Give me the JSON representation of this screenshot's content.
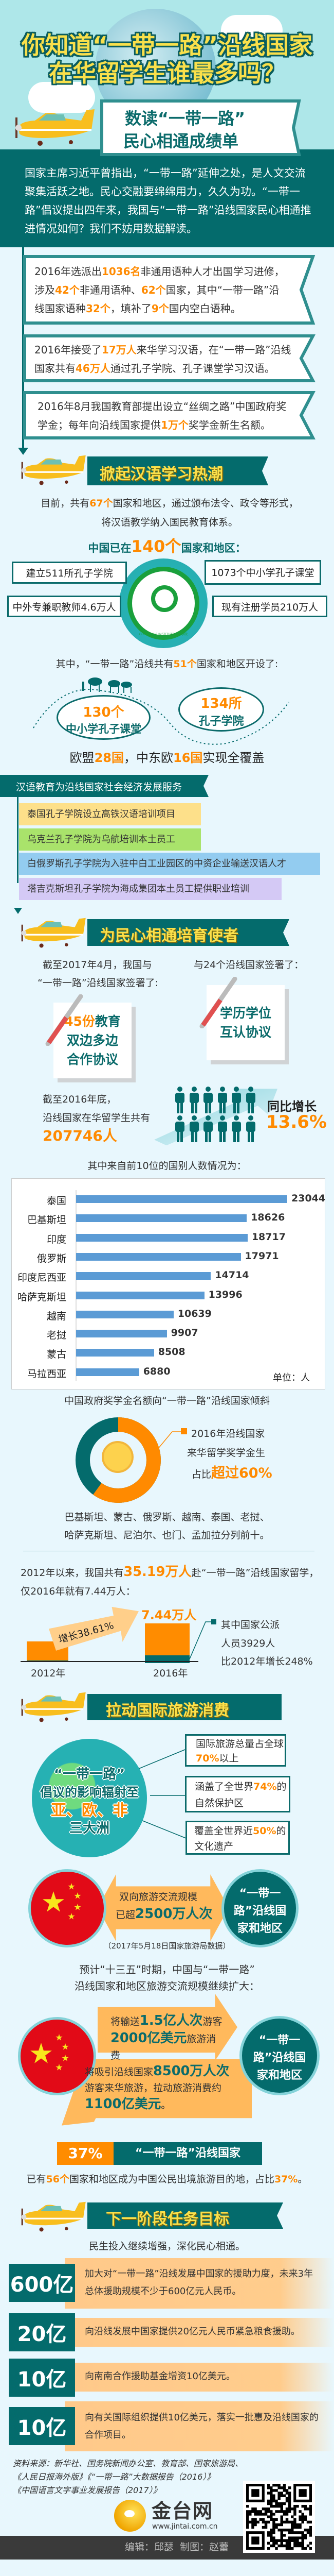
{
  "colors": {
    "teal": "#046b6c",
    "orange": "#ff8a00",
    "yellow": "#fbe04b",
    "bar": "#5b9bd5",
    "sky": "#aee7e9",
    "background": "#e8f7fd"
  },
  "header": {
    "title_line1": "你知道“一带一路”沿线国家",
    "title_line2": "在华留学生谁最多吗？",
    "subtitle_line1": "数读“一带一路”",
    "subtitle_line2": "民心相通成绩单"
  },
  "intro": "国家主席习近平曾指出，“一带一路”延伸之处，是人文交流聚集活跃之地。民心交融要绵绵用力，久久为功。“一带一路”倡议提出四年来，我国与“一带一路”沿线国家民心相通推进情况如何？我们不妨用数据解读。",
  "timeline": [
    [
      [
        "2016年选派出",
        ""
      ],
      [
        "1036名",
        "hl"
      ],
      [
        "非通用语种人才出国学习进修，涉及",
        ""
      ],
      [
        "42个",
        "hl"
      ],
      [
        "非通用语种、",
        ""
      ],
      [
        "62个",
        "hl"
      ],
      [
        "国家，其中“一带一路”沿线国家语种",
        ""
      ],
      [
        "32个",
        "hl"
      ],
      [
        "，填补了",
        ""
      ],
      [
        "9个",
        "hl"
      ],
      [
        "国内空白语种。",
        ""
      ]
    ],
    [
      [
        "2016年接受了",
        ""
      ],
      [
        "17万人",
        "hl"
      ],
      [
        "来华学习汉语，在“一带一路”沿线国家共有",
        ""
      ],
      [
        "46万人",
        "hl"
      ],
      [
        "通过孔子学院、孔子课堂学习汉语。",
        ""
      ]
    ],
    [
      [
        "2016年8月我国教育部提出设立“丝绸之路”中国政府奖学金；每年向沿线国家提供",
        ""
      ],
      [
        "1万个",
        "hl"
      ],
      [
        "奖学金新生名额。",
        ""
      ]
    ]
  ],
  "section_titles": [
    "掀起汉语学习热潮",
    "为民心相通培育使者",
    "拉动国际旅游消费",
    "下一阶段任务目标"
  ],
  "chinese": {
    "intro": [
      [
        "目前，共有",
        ""
      ],
      [
        "67个",
        "hl"
      ],
      [
        "国家和地区，通过颁布法令、政令等形式，将汉语教学纳入国民教育体系。",
        ""
      ]
    ],
    "headline": [
      [
        "中国已在",
        "tb"
      ],
      [
        "140个",
        "hlb"
      ],
      [
        "国家和地区：",
        "tb"
      ]
    ],
    "logo_text": "CONFUCIUS INSTITUTE 孔子学院",
    "stats": [
      "建立511所孔子学院",
      "1073个中小学孔子课堂",
      "中外专兼职教师4.6万人",
      "现有注册学员210万人"
    ],
    "along": [
      [
        "其中，“一带一路”沿线共有",
        ""
      ],
      [
        "51个",
        "hl"
      ],
      [
        "国家和地区开设了:",
        ""
      ]
    ],
    "ellipse1": {
      "num": "130个",
      "label": "中小学孔子课堂"
    },
    "ellipse2": {
      "num": "134所",
      "label": "孔子学院"
    },
    "coverage": [
      [
        "欧盟",
        ""
      ],
      [
        "28国",
        "hl"
      ],
      [
        "，中东欧",
        ""
      ],
      [
        "16国",
        "hl"
      ],
      [
        "实现全覆盖",
        ""
      ]
    ],
    "service_tag": "汉语教育为沿线国家社会经济发展服务",
    "services": [
      "泰国孔子学院设立高铁汉语培训项目",
      "乌克兰孔子学院为乌航培训本土员工",
      "白俄罗斯孔子学院为入驻中白工业园区的中资企业输送汉语人才",
      "塔吉克斯坦孔子学院为海成集团本土员工提供职业培训"
    ]
  },
  "envoys": {
    "left_intro_line1": "截至2017年4月，我国与",
    "left_intro_line2": "“一带一路”沿线国家签署了:",
    "right_intro": "与24个沿线国家签署了：",
    "note1": {
      "num": "45份",
      "l1": "教育",
      "l2": "双边多边",
      "l3": "合作协议"
    },
    "note2": {
      "l1": "学历学位",
      "l2": "互认协议"
    },
    "students_line1": "截至2016年底，",
    "students_line2": "沿线国家在华留学生共有",
    "students_total": "207746人",
    "growth_label": "同比增长",
    "growth_value": "13.6%",
    "chart_intro": "其中来自前10位的国别人数情况为：",
    "scholarship_title": "中国政府奖学金名额向“一带一路”沿线国家倾斜",
    "scholarship_share": 60,
    "scholarship_l1": "2016年沿线国家",
    "scholarship_l2": "来华留学奖学金生",
    "scholarship_l3a": "占比",
    "scholarship_l3b": "超过60%",
    "top10_line1": "巴基斯坦、蒙古、俄罗斯、越南、泰国、老挝、",
    "top10_line2": "哈萨克斯坦、尼泊尔、也门、孟加拉分列前十。",
    "abroad": [
      [
        "2012年以来，我国共有",
        ""
      ],
      [
        "35.19万人",
        "hlb2"
      ],
      [
        "赴“一带一路”沿线国家留学，仅2016年就有7.44万人：",
        ""
      ]
    ],
    "growth_arrow": "增长38.61%",
    "bar_2016_value": "7.44万人",
    "year_2012": "2012年",
    "year_2016": "2016年",
    "official_l1": "其中国家公派",
    "official_l2": "人员3929人",
    "official_l3": "比2012年增长248%"
  },
  "chart_data": {
    "type": "bar",
    "orientation": "horizontal",
    "categories": [
      "泰国",
      "巴基斯坦",
      "印度",
      "俄罗斯",
      "印度尼西亚",
      "哈萨克斯坦",
      "越南",
      "老挝",
      "蒙古",
      "马拉西亚"
    ],
    "values": [
      23044,
      18626,
      18717,
      17971,
      14714,
      13996,
      10639,
      9907,
      8508,
      6880
    ],
    "unit_label": "单位：人",
    "grid": false,
    "data_labels": true
  },
  "tourism": {
    "globe_l1": "“一带一路”",
    "globe_l2": "倡议的影响辐射至",
    "globe_l3": "亚、欧、非",
    "globe_l4": "三大洲",
    "facts": [
      [
        [
          "国际旅游总量",
          ""
        ],
        [
          "占全球",
          ""
        ],
        [
          "70%",
          "hl"
        ],
        [
          "以上",
          ""
        ]
      ],
      [
        [
          "涵盖了全世界",
          ""
        ],
        [
          "74%",
          "hl"
        ],
        [
          "的自然保护区",
          ""
        ]
      ],
      [
        [
          "覆盖全世界近",
          ""
        ],
        [
          "50%",
          "hl"
        ],
        [
          "的文化遗产",
          ""
        ]
      ]
    ],
    "partner": "“一带一路”沿线国家和地区",
    "exchange_l1": "双向旅游交流规模",
    "exchange_l2a": "已超",
    "exchange_l2b": "2500万人次",
    "source_note": "（2017年5月18日国家旅游局数据）",
    "forecast_l1": "预计“十三五”时期，中国与“一带一路”",
    "forecast_l2": "沿线国家和地区旅游交流规模继续扩大：",
    "out": [
      [
        "将输送",
        ""
      ],
      [
        "1.5亿人次",
        "tbb"
      ],
      [
        "游客",
        ""
      ],
      [
        "2000亿美元",
        "tbb"
      ],
      [
        "旅游消费",
        ""
      ]
    ],
    "in": [
      [
        "将吸引沿线国家",
        ""
      ],
      [
        "8500万人次",
        "tbb"
      ],
      [
        "游客来华旅游，拉动旅游消费约",
        ""
      ],
      [
        "1100亿美元",
        "tbb"
      ],
      [
        "。",
        ""
      ]
    ],
    "pct_badge": "37%",
    "pct_label": "“一带一路”沿线国家",
    "destinations": [
      [
        "已有",
        ""
      ],
      [
        "56个",
        "hl"
      ],
      [
        "国家和地区成为中国公民出境旅游目的地，占比",
        ""
      ],
      [
        "37%",
        "hl"
      ],
      [
        "。",
        ""
      ]
    ]
  },
  "goals": {
    "intro": "民生投入继续增强，深化民心相通。",
    "rows": [
      {
        "num": "600亿",
        "text": "加大对“一带一路”沿线发展中国家的援助力度，未来3年总体援助规模不少于600亿元人民币。"
      },
      {
        "num": "20亿",
        "text": "向沿线发展中国家提供20亿元人民币紧急粮食援助。"
      },
      {
        "num": "10亿",
        "text": "向南南合作援助基金增资10亿美元。"
      },
      {
        "num": "10亿",
        "text": "向有关国际组织提供10亿美元，落实一批惠及沿线国家的合作项目。"
      }
    ]
  },
  "footer": {
    "sources": [
      "资料来源：新华社、国务院新闻办公室、教育部、国家旅游局、",
      "《人民日报海外版》《“一带一路”大数据报告（2016）》",
      "《中国语言文字事业发展报告（2017）》"
    ],
    "logo_name": "金台网",
    "logo_url": "www.jintai.com.cn",
    "credits": "编辑：邱瑟  制图：赵蕾"
  }
}
